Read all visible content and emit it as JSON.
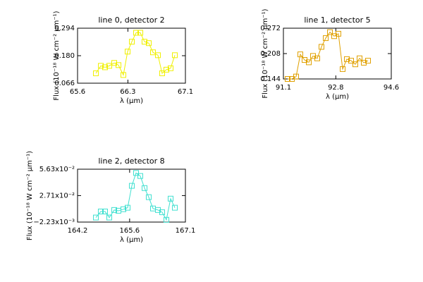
{
  "chart_data": [
    {
      "type": "line",
      "title": "line 0, detector 2",
      "xlabel": "λ (μm)",
      "ylabel": "Flux (10⁻¹⁸ W cm⁻² μm⁻¹)",
      "color": "#f0f000",
      "x": [
        65.855,
        65.924,
        65.982,
        66.041,
        66.11,
        66.169,
        66.237,
        66.296,
        66.355,
        66.414,
        66.473,
        66.531,
        66.59,
        66.649,
        66.718,
        66.776,
        66.835,
        66.894,
        66.953
      ],
      "values": [
        0.107,
        0.138,
        0.132,
        0.138,
        0.15,
        0.141,
        0.1,
        0.197,
        0.238,
        0.275,
        0.275,
        0.238,
        0.232,
        0.194,
        0.182,
        0.107,
        0.122,
        0.128,
        0.182
      ],
      "xlim": [
        65.6,
        67.1
      ],
      "xticks": [
        65.6,
        66.3,
        67.1
      ],
      "ylim": [
        0.066,
        0.294
      ],
      "yticks": [
        0.066,
        {
          "value": 0.18,
          "label": "0.180"
        },
        0.294
      ]
    },
    {
      "type": "line",
      "title": "line 1, detector 5",
      "xlabel": "λ (μm)",
      "ylabel": "Flux (10⁻¹⁸ W cm⁻² μm⁻¹)",
      "color": "#e0a000",
      "x": [
        91.237,
        91.375,
        91.512,
        91.649,
        91.786,
        91.924,
        92.061,
        92.198,
        92.335,
        92.473,
        92.61,
        92.747,
        92.884,
        93.022,
        93.159,
        93.296,
        93.433,
        93.571,
        93.708,
        93.845
      ],
      "values": [
        0.144,
        0.144,
        0.15,
        0.206,
        0.192,
        0.186,
        0.202,
        0.196,
        0.225,
        0.247,
        0.262,
        0.252,
        0.258,
        0.169,
        0.194,
        0.19,
        0.181,
        0.196,
        0.185,
        0.19
      ],
      "xlim": [
        91.1,
        94.6
      ],
      "xticks": [
        91.1,
        92.8,
        94.6
      ],
      "ylim": [
        0.144,
        0.272
      ],
      "yticks": [
        0.144,
        0.208,
        0.272
      ]
    },
    {
      "type": "line",
      "title": "line 2, detector 8",
      "xlabel": "λ (μm)",
      "ylabel": "Flux (10⁻¹⁸ W cm⁻² μm⁻¹)",
      "color": "#40e0d0",
      "x": [
        164.693,
        164.825,
        164.939,
        165.053,
        165.186,
        165.299,
        165.432,
        165.546,
        165.659,
        165.773,
        165.887,
        166.001,
        166.114,
        166.228,
        166.361,
        166.475,
        166.588,
        166.702,
        166.816
      ],
      "values": [
        0.00279,
        0.00948,
        0.00948,
        0.00279,
        0.01115,
        0.01031,
        0.01198,
        0.01366,
        0.0379,
        0.05212,
        0.04877,
        0.0354,
        0.02536,
        0.01282,
        0.01115,
        0.00864,
        0.00028,
        0.02369,
        0.01366
      ],
      "xlim": [
        164.2,
        167.1
      ],
      "xticks": [
        164.2,
        165.6,
        167.1
      ],
      "ylim": [
        -0.00223,
        0.0563
      ],
      "yticks": [
        {
          "value": -0.00223,
          "label": "−2.23x10⁻³"
        },
        {
          "value": 0.0271,
          "label": "2.71x10⁻²"
        },
        {
          "value": 0.0563,
          "label": "5.63x10⁻²"
        }
      ]
    }
  ]
}
